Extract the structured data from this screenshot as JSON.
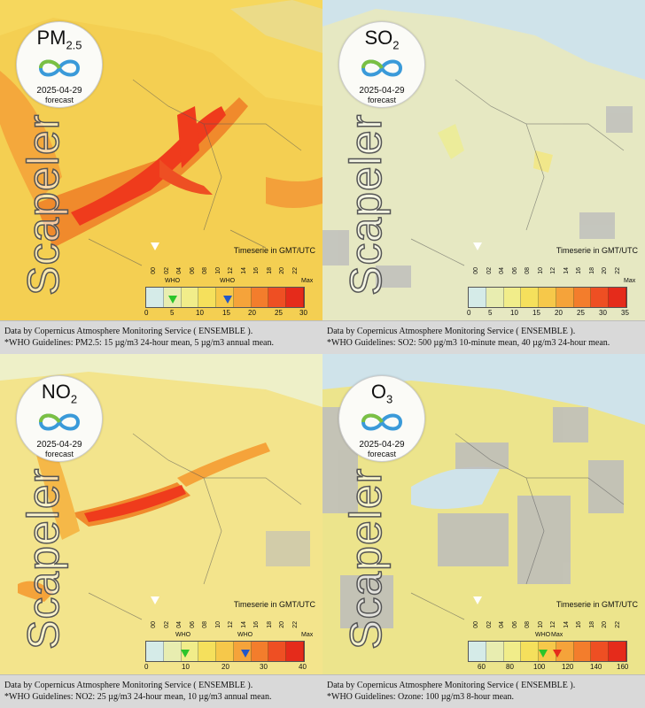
{
  "panels": [
    {
      "pollutant_main": "PM",
      "pollutant_sub": "2.5",
      "date": "2025-04-29",
      "forecast": "forecast",
      "watermark": "Scapeler",
      "timeserie": "Timeserie in GMT/UTC",
      "hours": [
        "00",
        "02",
        "04",
        "06",
        "08",
        "10",
        "12",
        "14",
        "16",
        "18",
        "20",
        "22"
      ],
      "scale_labels": [
        "0",
        "5",
        "10",
        "15",
        "20",
        "25",
        "30"
      ],
      "who_label": "WHO",
      "max_label": "Max",
      "footer_line1": "Data by Copernicus Atmosphere Monitoring Service ( ENSEMBLE ).",
      "footer_line2": "*WHO Guidelines: PM2.5: 15 µg/m3 24-hour mean, 5 µg/m3 annual mean.",
      "who_values": [
        5,
        15
      ],
      "scale_range": [
        0,
        30
      ]
    },
    {
      "pollutant_main": "SO",
      "pollutant_sub": "2",
      "date": "2025-04-29",
      "forecast": "forecast",
      "watermark": "Scapeler",
      "timeserie": "Timeserie in GMT/UTC",
      "hours": [
        "00",
        "02",
        "04",
        "06",
        "08",
        "10",
        "12",
        "14",
        "16",
        "18",
        "20",
        "22"
      ],
      "scale_labels": [
        "0",
        "5",
        "10",
        "15",
        "20",
        "25",
        "30",
        "35"
      ],
      "who_label": "",
      "max_label": "Max",
      "footer_line1": "Data by Copernicus Atmosphere Monitoring Service ( ENSEMBLE ).",
      "footer_line2": "*WHO Guidelines: SO2: 500 µg/m3 10-minute mean, 40 µg/m3 24-hour mean.",
      "who_values": [],
      "scale_range": [
        0,
        35
      ]
    },
    {
      "pollutant_main": "NO",
      "pollutant_sub": "2",
      "date": "2025-04-29",
      "forecast": "forecast",
      "watermark": "Scapeler",
      "timeserie": "Timeserie in GMT/UTC",
      "hours": [
        "00",
        "02",
        "04",
        "06",
        "08",
        "10",
        "12",
        "14",
        "16",
        "18",
        "20",
        "22"
      ],
      "scale_labels": [
        "0",
        "10",
        "20",
        "30",
        "40"
      ],
      "who_label": "WHO",
      "max_label": "Max",
      "footer_line1": "Data by Copernicus Atmosphere Monitoring Service ( ENSEMBLE ).",
      "footer_line2": "*WHO Guidelines: NO2: 25 µg/m3 24-hour mean, 10 µg/m3 annual mean.",
      "who_values": [
        10,
        25
      ],
      "scale_range": [
        0,
        40
      ]
    },
    {
      "pollutant_main": "O",
      "pollutant_sub": "3",
      "date": "2025-04-29",
      "forecast": "forecast",
      "watermark": "Scapeler",
      "timeserie": "Timeserie in GMT/UTC",
      "hours": [
        "00",
        "02",
        "04",
        "06",
        "08",
        "10",
        "12",
        "14",
        "16",
        "18",
        "20",
        "22"
      ],
      "scale_labels": [
        "60",
        "80",
        "100",
        "120",
        "140",
        "160"
      ],
      "who_label": "WHO",
      "max_label": "Max",
      "footer_line1": "Data by Copernicus Atmosphere Monitoring Service ( ENSEMBLE ).",
      "footer_line2": "*WHO Guidelines: Ozone: 100 µg/m3 8-hour mean.",
      "who_values": [
        100
      ],
      "scale_range": [
        50,
        160
      ]
    }
  ],
  "colors": {
    "pm_bg": "#f5d65a",
    "so_bg": "#e6e8c2",
    "no_bg": "#f3e48c",
    "o3_bg": "#ece48c",
    "sea": "#cfe3ea",
    "hot": "#f23a1c",
    "warm": "#f59a2e",
    "scale": [
      "#d5ebe8",
      "#e8edb0",
      "#f1ed8a",
      "#f5e05c",
      "#f6c84a",
      "#f5a33a",
      "#f37d2c",
      "#ee4f23",
      "#e52b1b"
    ]
  }
}
